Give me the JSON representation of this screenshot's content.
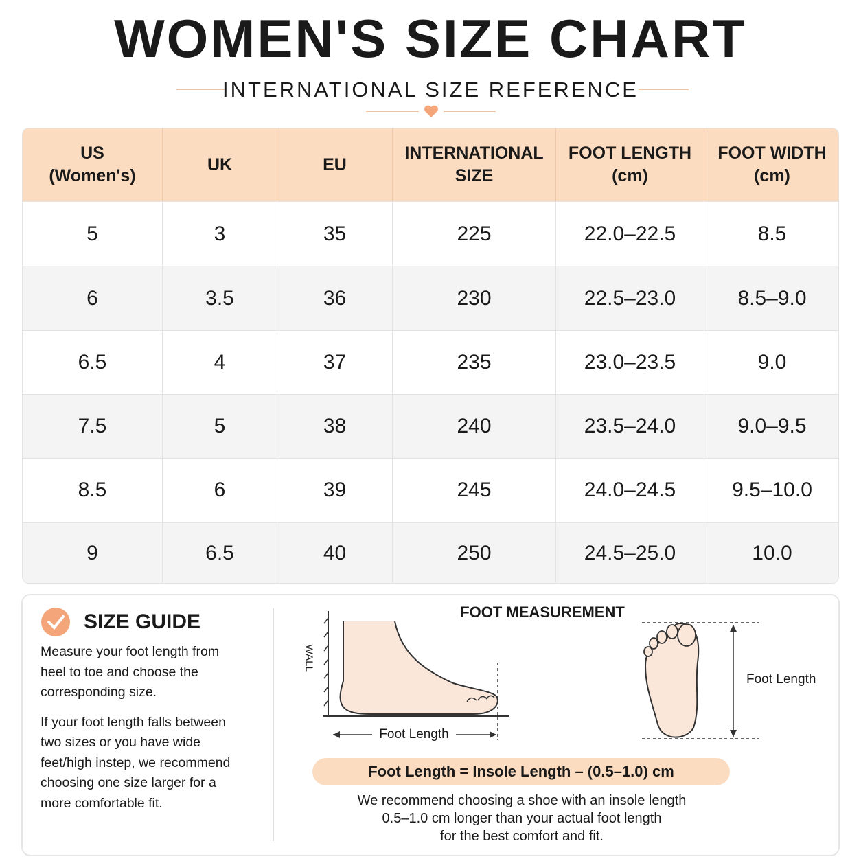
{
  "header": {
    "title": "WOMEN'S SIZE CHART",
    "subtitle": "INTERNATIONAL SIZE REFERENCE"
  },
  "table": {
    "header": [
      [
        "US",
        "(Women's)"
      ],
      [
        "UK"
      ],
      [
        "EU"
      ],
      [
        "INTERNATIONAL",
        "SIZE"
      ],
      [
        "FOOT LENGTH",
        "(cm)"
      ],
      [
        "FOOT WIDTH",
        "(cm)"
      ]
    ],
    "rows": [
      [
        "5",
        "3",
        "35",
        "225",
        "22.0–22.5",
        "8.5"
      ],
      [
        "6",
        "3.5",
        "36",
        "230",
        "22.5–23.0",
        "8.5–9.0"
      ],
      [
        "6.5",
        "4",
        "37",
        "235",
        "23.0–23.5",
        "9.0"
      ],
      [
        "7.5",
        "5",
        "38",
        "240",
        "23.5–24.0",
        "9.0–9.5"
      ],
      [
        "8.5",
        "6",
        "39",
        "245",
        "24.0–24.5",
        "9.5–10.0"
      ],
      [
        "9",
        "6.5",
        "40",
        "250",
        "24.5–25.0",
        "10.0"
      ]
    ]
  },
  "guide": {
    "title": "SIZE GUIDE",
    "paragraphs": [
      [
        "Measure your foot length from",
        "heel to toe and choose the",
        "corresponding size."
      ],
      [
        "If your foot length falls between",
        "two sizes or you have wide",
        "feet/high instep, we recommend",
        "choosing one size larger for a",
        "more comfortable fit."
      ]
    ]
  },
  "measurement": {
    "title": "FOOT MEASUREMENT",
    "wall": "WALL",
    "side_label": "Foot Length",
    "sole_label": "Foot Length",
    "formula": "Foot Length = Insole Length – (0.5–1.0) cm",
    "note": [
      "We recommend choosing a shoe with an insole length",
      "0.5–1.0 cm longer than your actual foot length",
      "for the best comfort and fit."
    ]
  }
}
